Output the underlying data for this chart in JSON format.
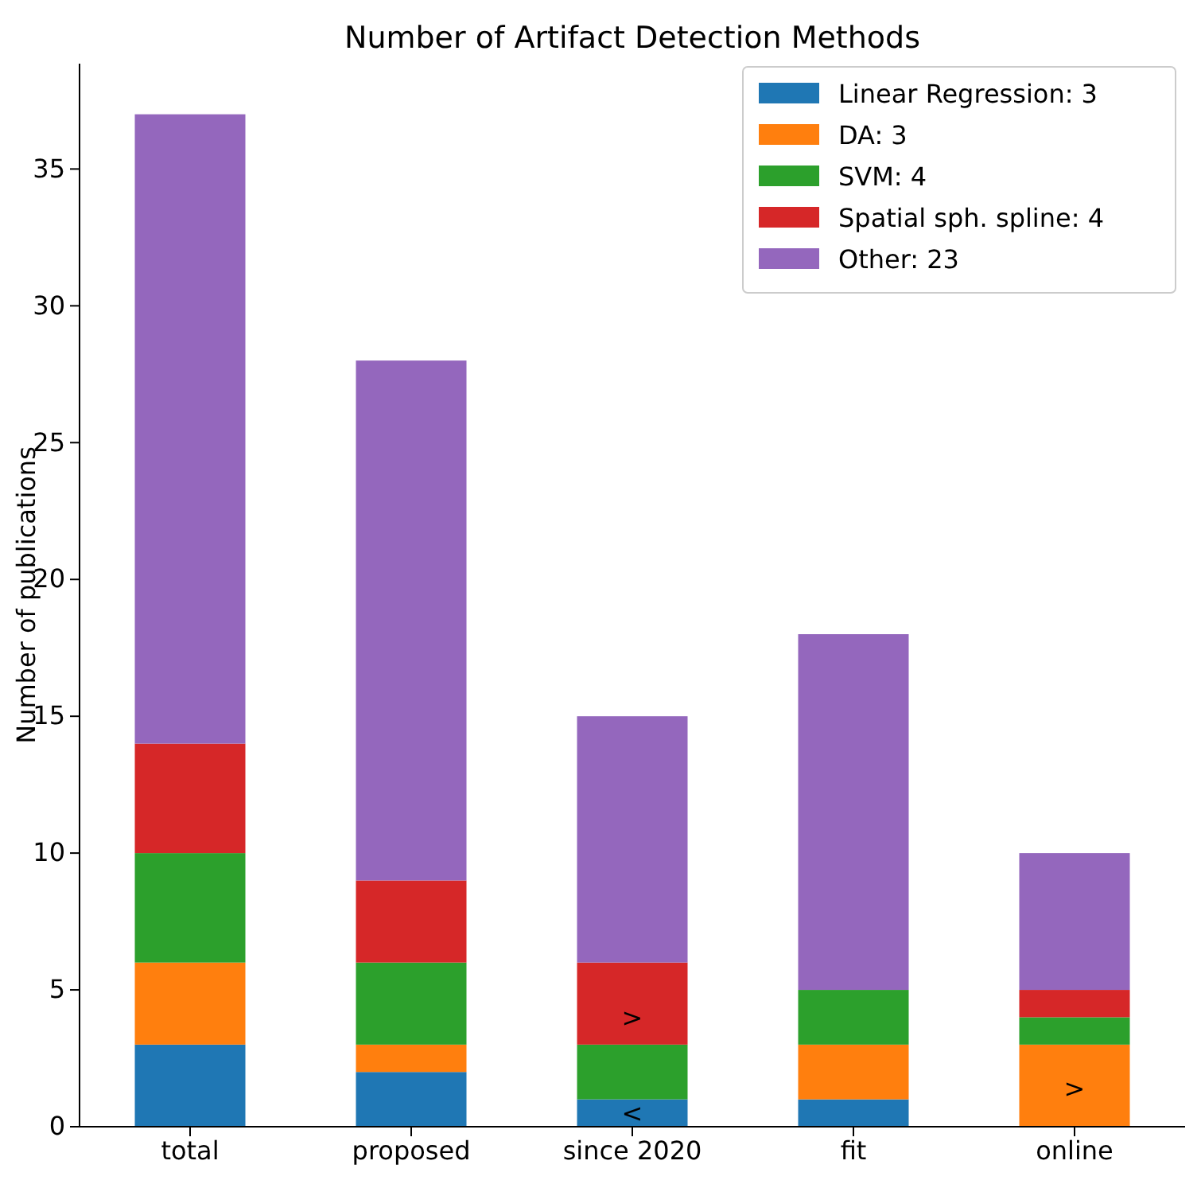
{
  "chart_data": {
    "type": "bar",
    "title": "Number of Artifact Detection Methods",
    "ylabel": "Number of publications",
    "categories": [
      "total",
      "proposed",
      "since 2020",
      "fit",
      "online"
    ],
    "stacked": true,
    "series": [
      {
        "name": "Linear Regression: 3",
        "color": "#1f77b4",
        "values": [
          3,
          2,
          1,
          1,
          0
        ]
      },
      {
        "name": "DA: 3",
        "color": "#ff7f0e",
        "values": [
          3,
          1,
          0,
          2,
          3
        ]
      },
      {
        "name": "SVM: 4",
        "color": "#2ca02c",
        "values": [
          4,
          3,
          2,
          2,
          1
        ]
      },
      {
        "name": "Spatial sph. spline: 4",
        "color": "#d62728",
        "values": [
          4,
          3,
          3,
          0,
          1
        ]
      },
      {
        "name": "Other: 23",
        "color": "#9467bd",
        "values": [
          23,
          19,
          9,
          13,
          5
        ]
      }
    ],
    "ylim": [
      0,
      38.85
    ],
    "yticks": [
      0,
      5,
      10,
      15,
      20,
      25,
      30,
      35
    ],
    "legend": "top right",
    "annotations": [
      ">",
      "<",
      ">"
    ]
  }
}
